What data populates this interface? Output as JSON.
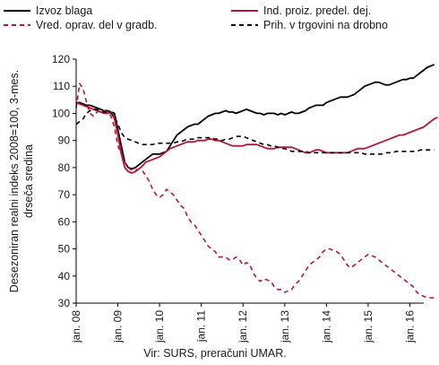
{
  "chart_data": {
    "type": "line",
    "ylabel_lines": [
      "Desezoniran realni indeks 2008=100, 3-mes.",
      "drseča sredina"
    ],
    "xlabel": "",
    "source": "Vir: SURS, preračuni UMAR.",
    "ylim": [
      30,
      120
    ],
    "yticks": [
      30,
      40,
      50,
      60,
      70,
      80,
      90,
      100,
      110,
      120
    ],
    "xticks": [
      "jan. 08",
      "jan. 09",
      "jan. 10",
      "jan. 11",
      "jan. 12",
      "jan. 13",
      "jan. 14",
      "jan. 15",
      "jan. 16"
    ],
    "x_start": "2008-01",
    "grid": false,
    "legend_position": "top",
    "series": [
      {
        "name": "Izvoz blaga",
        "color": "#000000",
        "dash": "solid",
        "values": [
          104,
          104,
          103.5,
          103,
          103,
          102.5,
          102,
          101.5,
          101,
          101,
          100.5,
          100,
          94,
          88,
          82,
          80,
          79.5,
          80,
          81,
          82,
          83,
          84,
          85,
          85,
          85,
          85.5,
          86,
          88,
          90,
          92,
          93,
          94,
          95,
          95.5,
          96,
          96,
          97,
          98,
          99,
          99.5,
          100,
          100,
          100.5,
          101,
          100.5,
          100.5,
          100,
          100.5,
          101,
          101.5,
          101,
          100.5,
          100,
          100,
          99.5,
          100,
          100,
          100,
          99.5,
          100,
          99.5,
          100,
          100.5,
          100,
          100,
          100.5,
          101,
          102,
          102.5,
          103,
          103,
          103,
          104,
          104.5,
          105,
          105.5,
          106,
          106,
          106,
          106.5,
          107,
          108,
          109,
          110,
          110.5,
          111,
          111.5,
          111.5,
          111,
          110.5,
          110.5,
          111,
          111.5,
          112,
          112.5,
          112.5,
          113,
          113,
          114,
          115,
          116,
          117,
          117.5,
          118
        ]
      },
      {
        "name": "Ind. proiz. predel. dej.",
        "color": "#b5163a",
        "dash": "solid",
        "values": [
          104,
          103.5,
          103,
          102.5,
          102,
          101.5,
          101,
          100.5,
          100,
          100,
          100.5,
          98,
          92,
          85,
          80,
          78.5,
          78,
          78.5,
          79.5,
          80.5,
          82,
          82.5,
          83,
          83.5,
          84,
          85,
          86,
          87,
          87.5,
          88,
          88.5,
          89,
          89.5,
          89.5,
          89.5,
          90,
          90,
          90,
          90.5,
          90.5,
          90,
          90,
          89.5,
          89,
          88.5,
          88,
          88,
          88,
          88,
          88.5,
          88.5,
          88.5,
          88.5,
          88,
          87.5,
          87,
          87,
          87,
          87.5,
          87.5,
          87.5,
          87.5,
          87.5,
          87,
          86.5,
          86,
          85.5,
          85.5,
          86,
          86.5,
          86.5,
          86,
          85.5,
          85.5,
          85.5,
          85.5,
          85.5,
          85.5,
          85.5,
          86,
          86.5,
          87,
          87,
          87,
          87.5,
          88,
          88.5,
          89,
          89.5,
          90,
          90.5,
          91,
          91.5,
          92,
          92,
          92.5,
          93,
          93.5,
          94,
          94.5,
          95,
          96,
          97,
          98,
          98.5
        ]
      },
      {
        "name": "Vred. oprav. del v gradb.",
        "color": "#b5163a",
        "dash": "dashed",
        "values": [
          102,
          111,
          109,
          104,
          100,
          99,
          100.5,
          101,
          101,
          100.5,
          99,
          95,
          88,
          85,
          82,
          80,
          79,
          79,
          79.5,
          79,
          77,
          75,
          72,
          70,
          69,
          70,
          72,
          71,
          70,
          68,
          66,
          65,
          62,
          60,
          59,
          57,
          55,
          53,
          51,
          50,
          49,
          47,
          47,
          47,
          46,
          46,
          47,
          46,
          44,
          45,
          44,
          41,
          39,
          38,
          39,
          38.5,
          38,
          36,
          35,
          35,
          34,
          34.5,
          35,
          37,
          38,
          40,
          42,
          44,
          45,
          46,
          47,
          49,
          50,
          50,
          49.5,
          49,
          48,
          46,
          44,
          43,
          44,
          45,
          46,
          47,
          48,
          47.5,
          47,
          46,
          45,
          44,
          43,
          42,
          41,
          40,
          39,
          38,
          37,
          36,
          34,
          33,
          32.5,
          32,
          32,
          32
        ]
      },
      {
        "name": "Prih. v trgovini na drobno",
        "color": "#000000",
        "dash": "dashed",
        "values": [
          96,
          97,
          98,
          100,
          101,
          101.5,
          101.5,
          101,
          100.5,
          100.5,
          100,
          99,
          96,
          93,
          91,
          90.5,
          90,
          89.5,
          89,
          88.5,
          88.5,
          88.5,
          88.5,
          89,
          89,
          89,
          89,
          89,
          89,
          89.5,
          89.5,
          90,
          90.5,
          90.5,
          90.5,
          91,
          91,
          91,
          91,
          91,
          90.5,
          90.5,
          90,
          90.5,
          90.5,
          91,
          91.5,
          91.5,
          91.5,
          91,
          90.5,
          90,
          89.5,
          89,
          88.5,
          88.5,
          88,
          88,
          87.5,
          87,
          87,
          86.5,
          86,
          86,
          86,
          86,
          86,
          85.5,
          85.5,
          85.5,
          85.5,
          85.5,
          85.5,
          85.5,
          85.5,
          85.5,
          85.5,
          85.5,
          85.5,
          85.5,
          85.5,
          85.5,
          85.5,
          85,
          85,
          85,
          85,
          85,
          85,
          85.5,
          85.5,
          85.5,
          86,
          86,
          86,
          86,
          86,
          86,
          86,
          86.5,
          86.5,
          86.5,
          86.5,
          86.5
        ]
      }
    ]
  }
}
